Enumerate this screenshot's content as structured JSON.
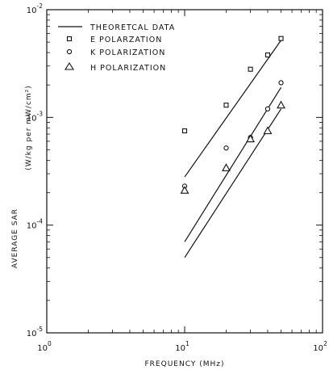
{
  "chart_data": {
    "type": "scatter",
    "xlabel": "FREQUENCY (MHz)",
    "ylabel": "AVERAGE SAR",
    "ylabel_unit": "(W/kg per mW/cm²)",
    "x_scale": "log",
    "y_scale": "log",
    "xlim": [
      1,
      100
    ],
    "ylim": [
      1e-05,
      0.01
    ],
    "x_ticks": [
      {
        "value": 1,
        "base": "10",
        "exp": "0"
      },
      {
        "value": 10,
        "base": "10",
        "exp": "1"
      },
      {
        "value": 100,
        "base": "10",
        "exp": "2"
      }
    ],
    "y_ticks": [
      {
        "value": 1e-05,
        "base": "10",
        "exp": "-5"
      },
      {
        "value": 0.0001,
        "base": "10",
        "exp": "-4"
      },
      {
        "value": 0.001,
        "base": "10",
        "exp": "-3"
      },
      {
        "value": 0.01,
        "base": "10",
        "exp": "-2"
      }
    ],
    "grid": false,
    "legend_position": "top-left",
    "legend": [
      {
        "label": "THEORETCAL DATA",
        "symbol": "line"
      },
      {
        "label": "E POLARZATION",
        "symbol": "square"
      },
      {
        "label": "K POLARIZATION",
        "symbol": "circle"
      },
      {
        "label": "H POLARIZATION",
        "symbol": "triangle"
      }
    ],
    "theory_lines": [
      {
        "name": "E",
        "x": [
          10,
          50
        ],
        "y": [
          0.00028,
          0.0052
        ]
      },
      {
        "name": "K",
        "x": [
          10,
          50
        ],
        "y": [
          7e-05,
          0.0019
        ]
      },
      {
        "name": "H",
        "x": [
          10,
          50
        ],
        "y": [
          5e-05,
          0.0012
        ]
      }
    ],
    "series": [
      {
        "name": "E POLARZATION",
        "marker": "square",
        "x": [
          10,
          20,
          30,
          40,
          50
        ],
        "y": [
          0.00075,
          0.0013,
          0.0028,
          0.0038,
          0.0054
        ]
      },
      {
        "name": "K POLARIZATION",
        "marker": "circle",
        "x": [
          10,
          20,
          30,
          40,
          50
        ],
        "y": [
          0.00023,
          0.00052,
          0.00065,
          0.0012,
          0.0021
        ]
      },
      {
        "name": "H POLARIZATION",
        "marker": "triangle",
        "x": [
          10,
          20,
          30,
          40,
          50
        ],
        "y": [
          0.00021,
          0.00034,
          0.00063,
          0.00075,
          0.0013
        ]
      }
    ]
  }
}
